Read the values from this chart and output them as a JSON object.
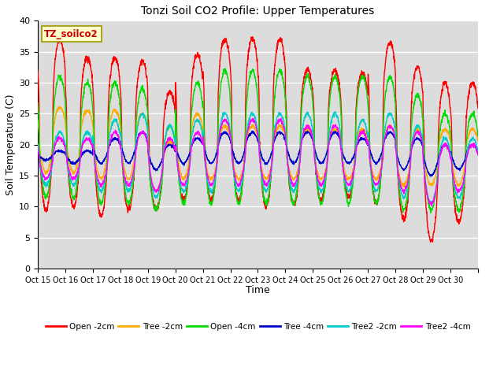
{
  "title": "Tonzi Soil CO2 Profile: Upper Temperatures",
  "xlabel": "Time",
  "ylabel": "Soil Temperature (C)",
  "ylim": [
    0,
    40
  ],
  "background_color": "#dcdcdc",
  "grid_color": "#ffffff",
  "annotation_text": "TZ_soilco2",
  "annotation_bg": "#ffffcc",
  "annotation_fg": "#cc0000",
  "xtick_labels": [
    "Oct 15",
    "Oct 16",
    "Oct 17",
    "Oct 18",
    "Oct 19",
    "Oct 20",
    "Oct 21",
    "Oct 22",
    "Oct 23",
    "Oct 24",
    "Oct 25",
    "Oct 26",
    "Oct 27",
    "Oct 28",
    "Oct 29",
    "Oct 30"
  ],
  "series": [
    {
      "label": "Open -2cm",
      "color": "#ff0000"
    },
    {
      "label": "Tree -2cm",
      "color": "#ffaa00"
    },
    {
      "label": "Open -4cm",
      "color": "#00dd00"
    },
    {
      "label": "Tree -4cm",
      "color": "#0000cc"
    },
    {
      "label": "Tree2 -2cm",
      "color": "#00cccc"
    },
    {
      "label": "Tree2 -4cm",
      "color": "#ff00ff"
    }
  ],
  "red_mins": [
    9.5,
    10.0,
    8.5,
    9.5,
    9.5,
    11.0,
    11.0,
    11.0,
    10.0,
    10.5,
    11.0,
    11.5,
    10.5,
    8.0,
    4.5,
    7.5
  ],
  "red_maxs": [
    37.0,
    34.0,
    34.0,
    33.5,
    28.5,
    34.5,
    37.0,
    37.0,
    37.0,
    32.0,
    32.0,
    31.5,
    36.5,
    32.5,
    30.0,
    30.0
  ],
  "orange_mins": [
    15.5,
    15.5,
    14.5,
    14.5,
    12.5,
    14.5,
    14.5,
    14.5,
    14.5,
    14.5,
    14.5,
    14.5,
    14.5,
    13.5,
    13.5,
    13.5
  ],
  "orange_maxs": [
    26.0,
    25.5,
    25.5,
    25.0,
    20.5,
    25.0,
    23.0,
    23.0,
    23.0,
    22.5,
    22.5,
    22.5,
    23.0,
    22.5,
    22.5,
    22.5
  ],
  "green_mins": [
    11.5,
    11.5,
    10.5,
    10.5,
    9.5,
    10.5,
    10.5,
    10.5,
    10.5,
    10.5,
    10.5,
    10.5,
    10.5,
    9.5,
    9.5,
    9.5
  ],
  "green_maxs": [
    31.0,
    30.0,
    30.0,
    29.0,
    23.0,
    30.0,
    32.0,
    32.0,
    32.0,
    31.0,
    31.0,
    31.0,
    31.0,
    28.0,
    25.0,
    25.0
  ],
  "blue_mins": [
    17.5,
    17.0,
    17.0,
    17.0,
    16.0,
    17.0,
    17.0,
    17.0,
    17.0,
    17.0,
    17.0,
    17.0,
    17.0,
    16.0,
    15.0,
    16.0
  ],
  "blue_maxs": [
    19.0,
    19.0,
    21.0,
    22.0,
    20.0,
    21.0,
    22.0,
    22.0,
    22.0,
    22.0,
    22.0,
    21.0,
    22.0,
    21.0,
    20.0,
    20.0
  ],
  "cyan_mins": [
    13.5,
    13.5,
    12.5,
    12.5,
    11.5,
    12.5,
    12.5,
    12.5,
    12.5,
    12.5,
    12.5,
    12.5,
    12.5,
    11.5,
    10.5,
    11.5
  ],
  "cyan_maxs": [
    22.0,
    22.0,
    24.0,
    25.0,
    23.0,
    24.0,
    25.0,
    25.0,
    25.0,
    25.0,
    25.0,
    24.0,
    25.0,
    23.0,
    21.0,
    21.0
  ],
  "mag_mins": [
    14.5,
    14.5,
    13.5,
    13.5,
    12.5,
    13.5,
    13.5,
    13.5,
    13.5,
    13.5,
    13.5,
    13.5,
    13.5,
    12.5,
    10.5,
    12.5
  ],
  "mag_maxs": [
    21.0,
    21.0,
    22.0,
    22.0,
    21.0,
    22.0,
    24.0,
    24.0,
    24.0,
    23.0,
    23.0,
    22.0,
    23.0,
    22.0,
    20.0,
    20.0
  ]
}
